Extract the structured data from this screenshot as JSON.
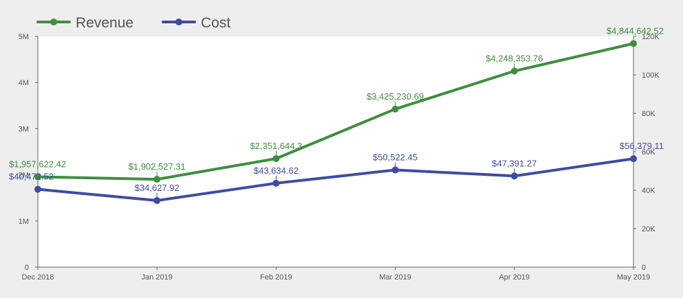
{
  "chart_data": {
    "type": "line",
    "title": "",
    "categories": [
      "Dec 2018",
      "Jan 2019",
      "Feb 2019",
      "Mar 2019",
      "Apr 2019",
      "May 2019"
    ],
    "series": [
      {
        "name": "Revenue",
        "axis": "left",
        "color": "#3e8e3e",
        "values": [
          1957622.42,
          1902527.31,
          2351644.3,
          3425230.69,
          4248353.76,
          4844642.52
        ],
        "labels": [
          "$1,957,622.42",
          "$1,902,527.31",
          "$2,351,644.3",
          "$3,425,230.69",
          "$4,248,353.76",
          "$4,844,642.52"
        ]
      },
      {
        "name": "Cost",
        "axis": "right",
        "color": "#3e4aa8",
        "values": [
          40472.52,
          34627.92,
          43634.62,
          50522.45,
          47391.27,
          56379.11
        ],
        "labels": [
          "$40,472.52",
          "$34,627.92",
          "$43,634.62",
          "$50,522.45",
          "$47,391.27",
          "$56,379.11"
        ]
      }
    ],
    "y_left": {
      "ylim": [
        0,
        5000000
      ],
      "ticks": [
        0,
        1000000,
        2000000,
        3000000,
        4000000,
        5000000
      ],
      "tick_labels": [
        "0",
        "1M",
        "2M",
        "3M",
        "4M",
        "5M"
      ]
    },
    "y_right": {
      "ylim": [
        0,
        120000
      ],
      "ticks": [
        0,
        20000,
        40000,
        60000,
        80000,
        100000,
        120000
      ],
      "tick_labels": [
        "0",
        "20K",
        "40K",
        "60K",
        "80K",
        "100K",
        "120K"
      ]
    },
    "grid": false,
    "legend_position": "top-left"
  }
}
